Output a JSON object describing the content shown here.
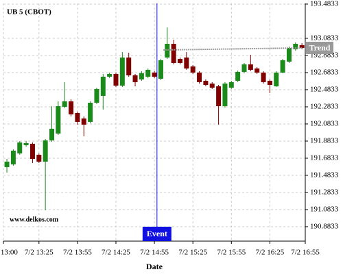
{
  "chart_data": {
    "type": "candlestick",
    "title": "UB 5 (CBOT)",
    "watermark": "www.delkos.com",
    "x_label": "Date",
    "x": [
      0,
      5,
      10,
      15,
      20,
      25,
      30,
      35,
      40,
      45,
      50,
      55,
      60,
      65,
      70,
      75,
      80,
      85,
      90,
      95,
      100,
      105,
      110,
      115,
      120,
      125,
      130,
      135,
      140,
      145,
      150,
      155,
      160,
      165,
      170,
      175,
      180,
      185,
      190,
      195,
      200,
      205,
      210,
      215,
      220,
      225,
      230
    ],
    "open": [
      191.5793,
      191.6113,
      191.7393,
      191.8353,
      191.8513,
      191.7233,
      191.6433,
      191.8913,
      191.9713,
      192.2833,
      192.3473,
      192.2113,
      192.1473,
      192.1073,
      192.3313,
      192.4113,
      192.6353,
      192.6673,
      192.5313,
      192.8593,
      192.6513,
      192.6033,
      192.6353,
      192.6833,
      192.6113,
      192.8593,
      193.0193,
      192.8433,
      192.8593,
      192.7553,
      192.6833,
      192.5873,
      192.5553,
      192.5233,
      192.2913,
      192.5073,
      192.5873,
      192.6913,
      192.7793,
      192.7313,
      192.6833,
      192.5873,
      192.5233,
      192.6833,
      192.8113,
      192.9553,
      193.0033
    ],
    "high": [
      191.6753,
      191.7873,
      191.8833,
      191.8833,
      191.8673,
      191.7393,
      191.9073,
      192.2913,
      192.3473,
      192.5713,
      192.3713,
      192.2273,
      192.1713,
      192.3473,
      192.5073,
      192.6673,
      192.6833,
      192.6833,
      192.9233,
      192.9153,
      192.6673,
      192.6993,
      192.7313,
      192.6993,
      192.8433,
      193.2113,
      193.0673,
      192.8593,
      192.9233,
      192.7713,
      192.6993,
      192.6033,
      192.5713,
      192.5393,
      192.5713,
      192.5873,
      192.7073,
      192.7953,
      192.8913,
      192.7473,
      192.6993,
      192.6033,
      192.6993,
      192.8433,
      192.9873,
      193.0353,
      193.0273
    ],
    "low": [
      191.5153,
      191.5953,
      191.7233,
      191.8193,
      191.6273,
      191.6273,
      191.0753,
      191.8753,
      191.9553,
      192.2673,
      192.1713,
      192.0753,
      191.9393,
      192.0913,
      192.3153,
      192.2513,
      192.6193,
      192.5153,
      192.5153,
      192.6353,
      192.5233,
      192.5873,
      192.6193,
      192.6193,
      192.5953,
      192.8433,
      192.7793,
      192.7793,
      192.7153,
      192.6673,
      192.5553,
      192.5233,
      192.4913,
      192.0753,
      192.2753,
      192.4913,
      192.5713,
      192.6753,
      192.6993,
      192.6673,
      192.5553,
      192.4433,
      192.5153,
      192.6753,
      192.7953,
      192.9393,
      192.9553
    ],
    "close": [
      191.6433,
      191.7713,
      191.8673,
      191.8593,
      191.6753,
      191.6433,
      191.8913,
      192.0273,
      192.2913,
      192.3473,
      192.1953,
      192.1073,
      192.0753,
      192.3313,
      192.4913,
      192.6353,
      192.6673,
      192.5313,
      192.8593,
      192.6513,
      192.5713,
      192.6753,
      192.7153,
      192.6353,
      192.8273,
      193.0193,
      192.7953,
      192.7953,
      192.7313,
      192.6833,
      192.5713,
      192.5393,
      192.5073,
      192.2913,
      192.5553,
      192.5713,
      192.6913,
      192.7793,
      192.7153,
      192.6833,
      192.5713,
      192.5393,
      192.6833,
      192.8273,
      192.9713,
      193.0193,
      192.9713
    ],
    "up_color": "#1a8a1a",
    "down_color": "#800000",
    "xlim": [
      -2.7,
      232.6
    ],
    "ylim": [
      190.715,
      193.491
    ],
    "xticks": [
      {
        "value": -2.7,
        "label": "7/2 13:00"
      },
      {
        "value": 25,
        "label": "7/2 13:25"
      },
      {
        "value": 55,
        "label": "7/2 13:55"
      },
      {
        "value": 85,
        "label": "7/2 14:25"
      },
      {
        "value": 115,
        "label": "7/2 14:55"
      },
      {
        "value": 145,
        "label": "7/2 15:25"
      },
      {
        "value": 175,
        "label": "7/2 15:55"
      },
      {
        "value": 205,
        "label": "7/2 16:25"
      },
      {
        "value": 232.6,
        "label": "7/2 16:55"
      }
    ],
    "yticks": [
      193.4833,
      193.0833,
      192.8833,
      192.6833,
      192.4833,
      192.2833,
      192.0833,
      191.8833,
      191.6833,
      191.4833,
      191.2833,
      191.0833,
      190.8833
    ],
    "grid": true,
    "event": {
      "label": "Event",
      "x": 117,
      "color": "#1010e0"
    },
    "trend": {
      "label": "Trend",
      "x": [
        122,
        230
      ],
      "values": [
        192.9473,
        192.9713
      ],
      "color": "#999999"
    }
  }
}
